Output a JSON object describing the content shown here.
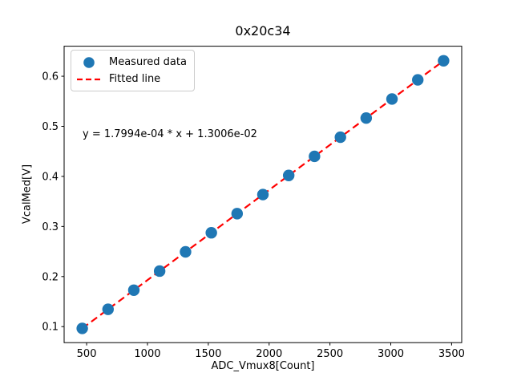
{
  "figure": {
    "background": "#ffffff",
    "spine_color": "#000000"
  },
  "chart_data": {
    "type": "scatter",
    "title": "0x20c34",
    "xlabel": "ADC_Vmux8[Count]",
    "ylabel": "VcalMed[V]",
    "xlim": [
      315,
      3583
    ],
    "ylim": [
      0.068,
      0.66
    ],
    "xticks": [
      500,
      1000,
      1500,
      2000,
      2500,
      3000,
      3500
    ],
    "yticks": [
      0.1,
      0.2,
      0.3,
      0.4,
      0.5,
      0.6
    ],
    "grid": false,
    "legend": {
      "position": "upper-left",
      "entries": [
        "Measured data",
        "Fitted line"
      ]
    },
    "annotation": {
      "text": "y = 1.7994e-04 * x + 1.3006e-02"
    },
    "series": [
      {
        "name": "Measured data",
        "kind": "scatter",
        "color": "#1f77b4",
        "marker": "circle",
        "marker_radius_px": 7.2,
        "x": [
          464,
          676,
          888,
          1100,
          1313,
          1525,
          1737,
          1949,
          2161,
          2373,
          2586,
          2798,
          3010,
          3222,
          3434
        ],
        "y": [
          0.0965,
          0.1346,
          0.1728,
          0.2109,
          0.2493,
          0.2874,
          0.3256,
          0.3637,
          0.4019,
          0.44,
          0.4783,
          0.5165,
          0.5546,
          0.5928,
          0.6309
        ]
      },
      {
        "name": "Fitted line",
        "kind": "line",
        "style": "dashed",
        "color": "#ff0000",
        "slope": 0.00017994,
        "intercept": 0.013006,
        "x_range": [
          464,
          3434
        ]
      }
    ]
  }
}
